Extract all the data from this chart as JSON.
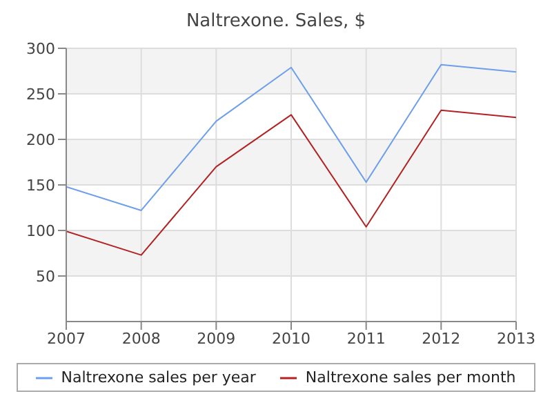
{
  "chart_data": {
    "type": "line",
    "title": "Naltrexone. Sales, $",
    "x": [
      2007,
      2008,
      2009,
      2010,
      2011,
      2012,
      2013
    ],
    "xlim": [
      2007,
      2013
    ],
    "xticks": [
      2007,
      2008,
      2009,
      2010,
      2011,
      2012,
      2013
    ],
    "ylim": [
      0,
      300
    ],
    "yticks": [
      50,
      100,
      150,
      200,
      250,
      300
    ],
    "grid": true,
    "legend": "bottom",
    "marker": "none",
    "line_style": "solid",
    "series": [
      {
        "name": "Naltrexone sales per year",
        "color": "#6d9eeb",
        "values": [
          148,
          122,
          220,
          279,
          153,
          282,
          274
        ]
      },
      {
        "name": "Naltrexone sales per month",
        "color": "#b22222",
        "values": [
          99,
          73,
          170,
          227,
          104,
          232,
          224
        ]
      }
    ]
  }
}
